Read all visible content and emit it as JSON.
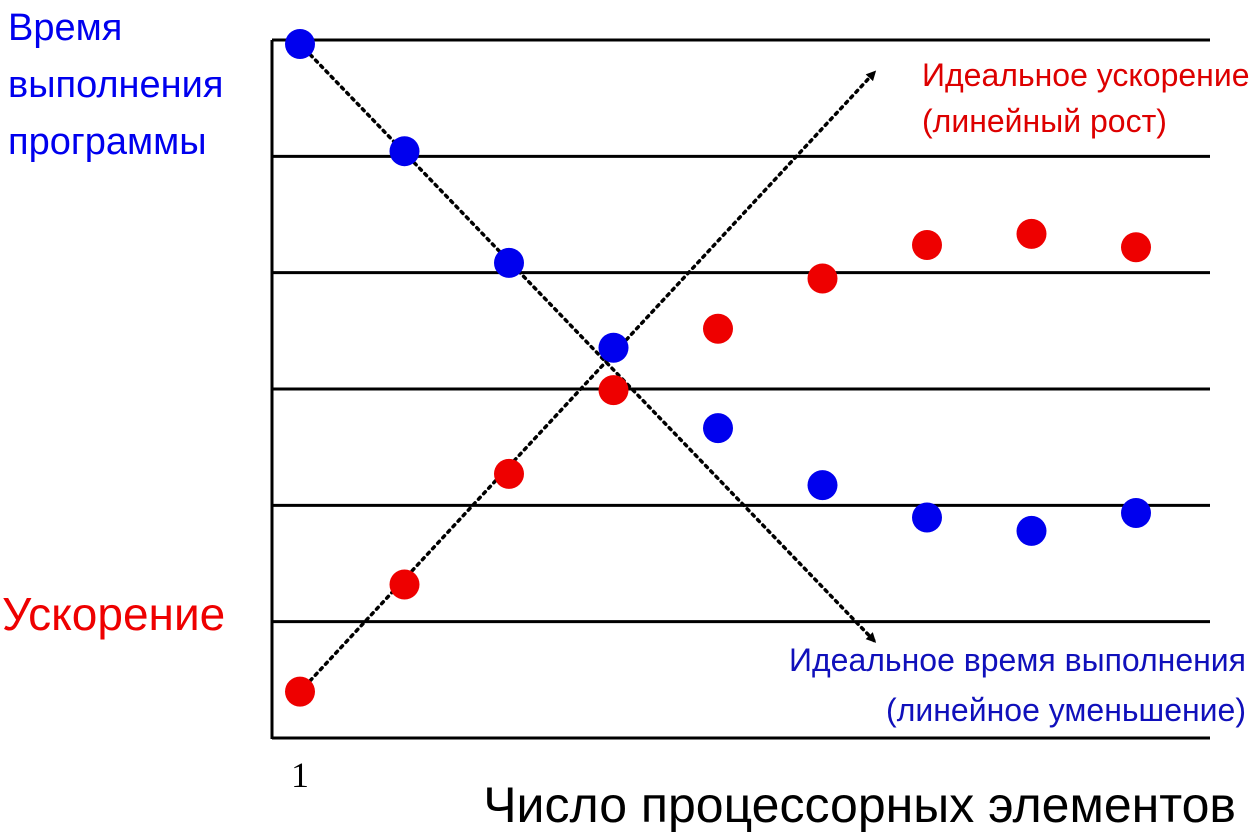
{
  "chart_data": {
    "type": "scatter",
    "xlabel": "Число процессорных элементов",
    "x_tick_labels": [
      "1"
    ],
    "x": [
      1,
      2,
      3,
      4,
      5,
      6,
      7,
      8,
      9
    ],
    "y_gridlines": 7,
    "ylim": [
      0,
      6
    ],
    "series": [
      {
        "name": "Время выполнения программы",
        "color": "#0000ee",
        "label_lines": [
          "Время",
          "выполнения",
          "программы"
        ],
        "values": [
          6.0,
          5.04,
          4.04,
          3.28,
          2.56,
          2.05,
          1.76,
          1.64,
          1.8
        ]
      },
      {
        "name": "Ускорение",
        "color": "#ee0000",
        "label_lines": [
          "Ускорение"
        ],
        "values": [
          0.2,
          1.16,
          2.15,
          2.9,
          3.45,
          3.9,
          4.2,
          4.3,
          4.18
        ]
      }
    ],
    "ideal_lines": [
      {
        "label_lines": [
          "Идеальное ускорение",
          "(линейный рост)"
        ],
        "color": "#dd0000",
        "from": [
          1,
          0.2
        ],
        "to": [
          6.5,
          5.75
        ]
      },
      {
        "label_lines": [
          "Идеальное время выполнения",
          "(линейное уменьшение)"
        ],
        "color": "#1010bb",
        "from": [
          1,
          6.0
        ],
        "to": [
          6.5,
          0.65
        ]
      }
    ]
  }
}
